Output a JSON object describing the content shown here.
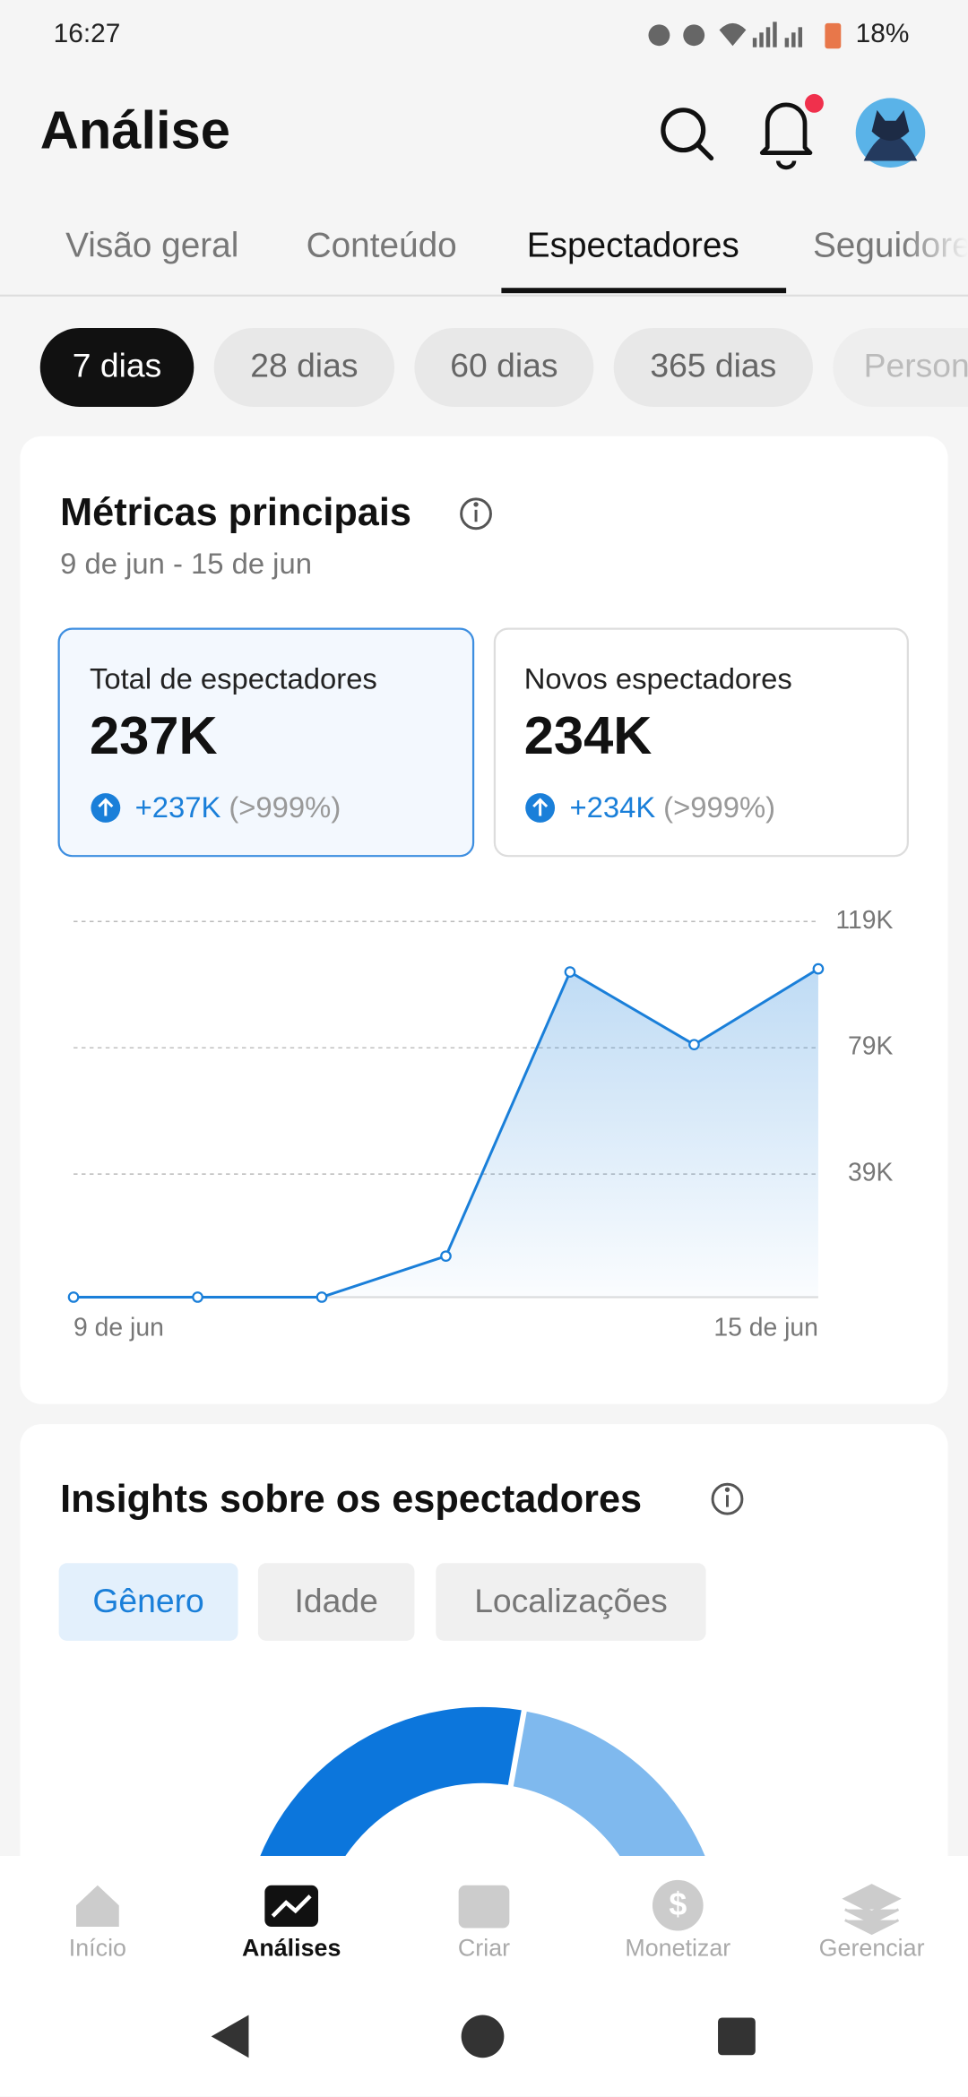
{
  "status_bar": {
    "time": "16:27",
    "battery": "18%"
  },
  "header": {
    "title": "Análise"
  },
  "tabs": [
    "Visão geral",
    "Conteúdo",
    "Espectadores",
    "Seguidores"
  ],
  "periods": [
    "7 dias",
    "28 dias",
    "60 dias",
    "365 dias",
    "Personalizado"
  ],
  "metrics_card": {
    "title": "Métricas principais",
    "date_range": "9 de jun - 15 de jun",
    "metrics": [
      {
        "label": "Total de espectadores",
        "value": "237K",
        "change": "+237K",
        "change_pct": "(>999%)"
      },
      {
        "label": "Novos espectadores",
        "value": "234K",
        "change": "+234K",
        "change_pct": "(>999%)"
      }
    ]
  },
  "chart_data": {
    "type": "line",
    "categories": [
      "9 de jun",
      null,
      null,
      null,
      null,
      null,
      "15 de jun"
    ],
    "series": [
      {
        "color": "#1a7fd9",
        "values": [
          0,
          0,
          0,
          13000,
          103000,
          80000,
          104000
        ]
      }
    ],
    "ylim": [
      0,
      119000
    ],
    "yticks": [
      {
        "value": 39000,
        "label": "39K"
      },
      {
        "value": 79000,
        "label": "79K"
      },
      {
        "value": 119000,
        "label": "119K"
      }
    ],
    "grid": true
  },
  "insights": {
    "title": "Insights sobre os espectadores",
    "tabs": [
      "Gênero",
      "Idade",
      "Localizações"
    ]
  },
  "bottom_nav": [
    "Início",
    "Análises",
    "Criar",
    "Monetizar",
    "Gerenciar"
  ]
}
